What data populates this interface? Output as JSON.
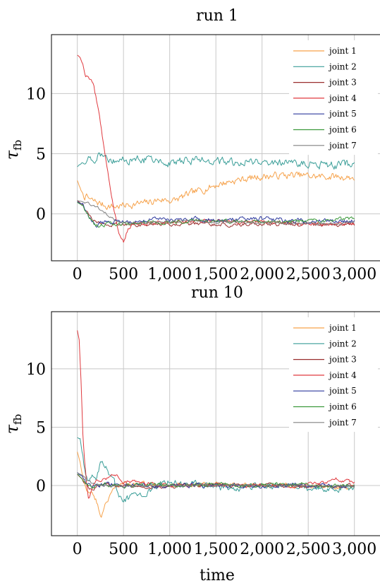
{
  "chart_data": [
    {
      "type": "line",
      "title": "run 1",
      "xlabel": "",
      "ylabel": "τ",
      "ylabel_sub": "fb",
      "xlim": [
        -280,
        3300
      ],
      "ylim": [
        -3.9,
        14.9
      ],
      "xticks": [
        0,
        500,
        1000,
        1500,
        2000,
        2500,
        3000
      ],
      "xtick_labels": [
        "0",
        "500",
        "1,000",
        "1,500",
        "2,000",
        "2,500",
        "3,000"
      ],
      "yticks": [
        0,
        5,
        10
      ],
      "ytick_labels": [
        "0",
        "5",
        "10"
      ],
      "grid": true,
      "legend_position": "top-right",
      "series": [
        {
          "name": "joint 1",
          "color": "#f6a24b",
          "x": [
            0,
            25,
            50,
            75,
            100,
            150,
            200,
            300,
            400,
            500,
            600,
            750,
            900,
            1050,
            1200,
            1350,
            1500,
            1650,
            1800,
            2000,
            2200,
            2400,
            2600,
            2800,
            3000
          ],
          "y": [
            2.8,
            2.2,
            1.8,
            1.5,
            1.4,
            1.1,
            1.0,
            0.7,
            0.6,
            0.7,
            0.8,
            0.9,
            1.2,
            1.1,
            1.6,
            2.0,
            2.4,
            2.7,
            2.9,
            3.1,
            3.2,
            3.2,
            3.1,
            3.1,
            3.0
          ],
          "noise": 0.55
        },
        {
          "name": "joint 2",
          "color": "#3a9e98",
          "x": [
            0,
            50,
            100,
            150,
            200,
            250,
            300,
            400,
            500,
            600,
            800,
            1000,
            1200,
            1400,
            1600,
            1800,
            2000,
            2200,
            2400,
            2600,
            2800,
            3000
          ],
          "y": [
            3.9,
            4.3,
            4.7,
            4.6,
            4.5,
            5.0,
            4.8,
            4.6,
            4.5,
            4.4,
            4.5,
            4.3,
            4.4,
            4.5,
            4.3,
            4.4,
            4.3,
            4.2,
            4.2,
            4.1,
            4.0,
            4.2
          ],
          "noise": 0.65
        },
        {
          "name": "joint 3",
          "color": "#9a2f2f",
          "x": [
            0,
            50,
            100,
            150,
            200,
            300,
            500,
            800,
            1200,
            1600,
            2000,
            2400,
            2800,
            3000
          ],
          "y": [
            1.1,
            0.8,
            0.3,
            -0.3,
            -0.7,
            -0.9,
            -0.9,
            -0.8,
            -0.8,
            -0.9,
            -0.8,
            -0.9,
            -0.9,
            -0.9
          ],
          "noise": 0.3
        },
        {
          "name": "joint 4",
          "color": "#e0393e",
          "x": [
            0,
            30,
            60,
            90,
            120,
            150,
            180,
            220,
            260,
            300,
            350,
            400,
            450,
            500,
            550,
            600,
            700,
            900,
            1200,
            1600,
            2000,
            2400,
            2800,
            3000
          ],
          "y": [
            13.2,
            13.0,
            12.4,
            11.5,
            11.3,
            11.0,
            10.5,
            9.0,
            7.0,
            4.8,
            2.4,
            0.3,
            -1.6,
            -2.3,
            -1.2,
            -0.8,
            -0.8,
            -0.7,
            -0.6,
            -0.6,
            -0.7,
            -0.8,
            -0.8,
            -0.8
          ],
          "noise": 0.3
        },
        {
          "name": "joint 5",
          "color": "#2e3a9e",
          "x": [
            0,
            50,
            100,
            150,
            200,
            300,
            500,
            800,
            1200,
            1600,
            2000,
            2400,
            2800,
            3000
          ],
          "y": [
            1.0,
            0.8,
            0.2,
            -0.5,
            -0.9,
            -0.7,
            -0.6,
            -0.5,
            -0.4,
            -0.5,
            -0.4,
            -0.6,
            -0.6,
            -0.6
          ],
          "noise": 0.35
        },
        {
          "name": "joint 6",
          "color": "#3d9a3d",
          "x": [
            0,
            50,
            100,
            150,
            200,
            300,
            500,
            800,
            1200,
            1600,
            2000,
            2400,
            2800,
            3000
          ],
          "y": [
            1.0,
            0.7,
            0.1,
            -0.6,
            -1.0,
            -0.9,
            -0.8,
            -0.7,
            -0.6,
            -0.6,
            -0.7,
            -0.6,
            -0.5,
            -0.4
          ],
          "noise": 0.3
        },
        {
          "name": "joint 7",
          "color": "#808080",
          "x": [
            0,
            50,
            100,
            150,
            200,
            250,
            300,
            350,
            400,
            450,
            500,
            800,
            1200,
            1600,
            2000,
            2400,
            2800,
            3000
          ],
          "y": [
            1.1,
            1.0,
            0.9,
            0.8,
            0.6,
            0.4,
            0.1,
            -0.2,
            -0.5,
            -0.7,
            -0.8,
            -0.7,
            -0.6,
            -0.7,
            -0.7,
            -0.8,
            -0.8,
            -0.7
          ],
          "noise": 0.2
        }
      ]
    },
    {
      "type": "line",
      "title": "run 10",
      "xlabel": "time",
      "ylabel": "τ",
      "ylabel_sub": "fb",
      "xlim": [
        -280,
        3300
      ],
      "ylim": [
        -4.3,
        14.9
      ],
      "xticks": [
        0,
        500,
        1000,
        1500,
        2000,
        2500,
        3000
      ],
      "xtick_labels": [
        "0",
        "500",
        "1,000",
        "1,500",
        "2,000",
        "2,500",
        "3,000"
      ],
      "yticks": [
        0,
        5,
        10
      ],
      "ytick_labels": [
        "0",
        "5",
        "10"
      ],
      "grid": true,
      "legend_position": "top-right",
      "series": [
        {
          "name": "joint 1",
          "color": "#f6a24b",
          "x": [
            0,
            30,
            60,
            100,
            150,
            200,
            260,
            300,
            350,
            400,
            500,
            600,
            800,
            1000,
            1400,
            1800,
            2200,
            2600,
            3000
          ],
          "y": [
            2.9,
            2.0,
            0.6,
            -0.4,
            -0.6,
            -1.2,
            -2.7,
            -1.5,
            -1.0,
            -0.3,
            0.2,
            0.1,
            0.1,
            0.0,
            0.1,
            0.0,
            0.0,
            -0.1,
            -0.2
          ],
          "noise": 0.35
        },
        {
          "name": "joint 2",
          "color": "#3a9e98",
          "x": [
            0,
            30,
            60,
            90,
            120,
            160,
            200,
            260,
            300,
            350,
            400,
            450,
            500,
            600,
            800,
            900,
            1000,
            1200,
            1400,
            1600,
            2000,
            2400,
            2800,
            3000
          ],
          "y": [
            4.1,
            4.0,
            2.4,
            0.8,
            0.3,
            1.0,
            0.8,
            2.0,
            1.5,
            1.0,
            0.2,
            -0.8,
            -1.4,
            -0.9,
            -0.4,
            0.2,
            0.3,
            0.1,
            0.0,
            -0.3,
            0.1,
            -0.2,
            -0.3,
            -0.2
          ],
          "noise": 0.55
        },
        {
          "name": "joint 3",
          "color": "#9a2f2f",
          "x": [
            0,
            50,
            100,
            150,
            200,
            300,
            500,
            800,
            1200,
            1600,
            2000,
            2400,
            2800,
            3000
          ],
          "y": [
            1.0,
            0.6,
            0.0,
            -0.3,
            -0.1,
            0.1,
            0.0,
            -0.1,
            0.0,
            0.1,
            0.0,
            0.0,
            -0.1,
            0.0
          ],
          "noise": 0.3
        },
        {
          "name": "joint 4",
          "color": "#e0393e",
          "x": [
            0,
            20,
            40,
            60,
            80,
            100,
            120,
            150,
            200,
            300,
            400,
            500,
            600,
            800,
            1200,
            1600,
            2000,
            2400,
            2700,
            2800,
            3000
          ],
          "y": [
            13.3,
            12.5,
            9.0,
            4.5,
            2.0,
            0.2,
            -1.1,
            -0.6,
            0.4,
            0.5,
            1.0,
            0.2,
            0.4,
            0.1,
            0.0,
            0.0,
            0.0,
            0.0,
            0.2,
            0.5,
            0.3
          ],
          "noise": 0.3
        },
        {
          "name": "joint 5",
          "color": "#2e3a9e",
          "x": [
            0,
            50,
            100,
            150,
            200,
            300,
            500,
            800,
            1200,
            1600,
            2000,
            2400,
            2800,
            3000
          ],
          "y": [
            1.1,
            0.8,
            0.2,
            -0.2,
            0.0,
            0.1,
            0.0,
            0.0,
            0.0,
            0.0,
            0.0,
            0.1,
            -0.1,
            0.0
          ],
          "noise": 0.35
        },
        {
          "name": "joint 6",
          "color": "#3d9a3d",
          "x": [
            0,
            50,
            100,
            150,
            200,
            300,
            500,
            800,
            1200,
            1600,
            2000,
            2400,
            2800,
            3000
          ],
          "y": [
            1.0,
            0.6,
            0.1,
            -0.2,
            -0.1,
            0.1,
            0.0,
            0.1,
            0.0,
            0.1,
            0.0,
            0.1,
            0.0,
            0.0
          ],
          "noise": 0.3
        },
        {
          "name": "joint 7",
          "color": "#808080",
          "x": [
            0,
            50,
            100,
            150,
            200,
            300,
            500,
            800,
            1200,
            1600,
            2000,
            2400,
            2800,
            3000
          ],
          "y": [
            1.1,
            0.9,
            0.5,
            0.2,
            0.1,
            0.0,
            0.0,
            0.0,
            0.0,
            0.0,
            0.0,
            0.0,
            -0.1,
            -0.1
          ],
          "noise": 0.2
        }
      ]
    }
  ]
}
